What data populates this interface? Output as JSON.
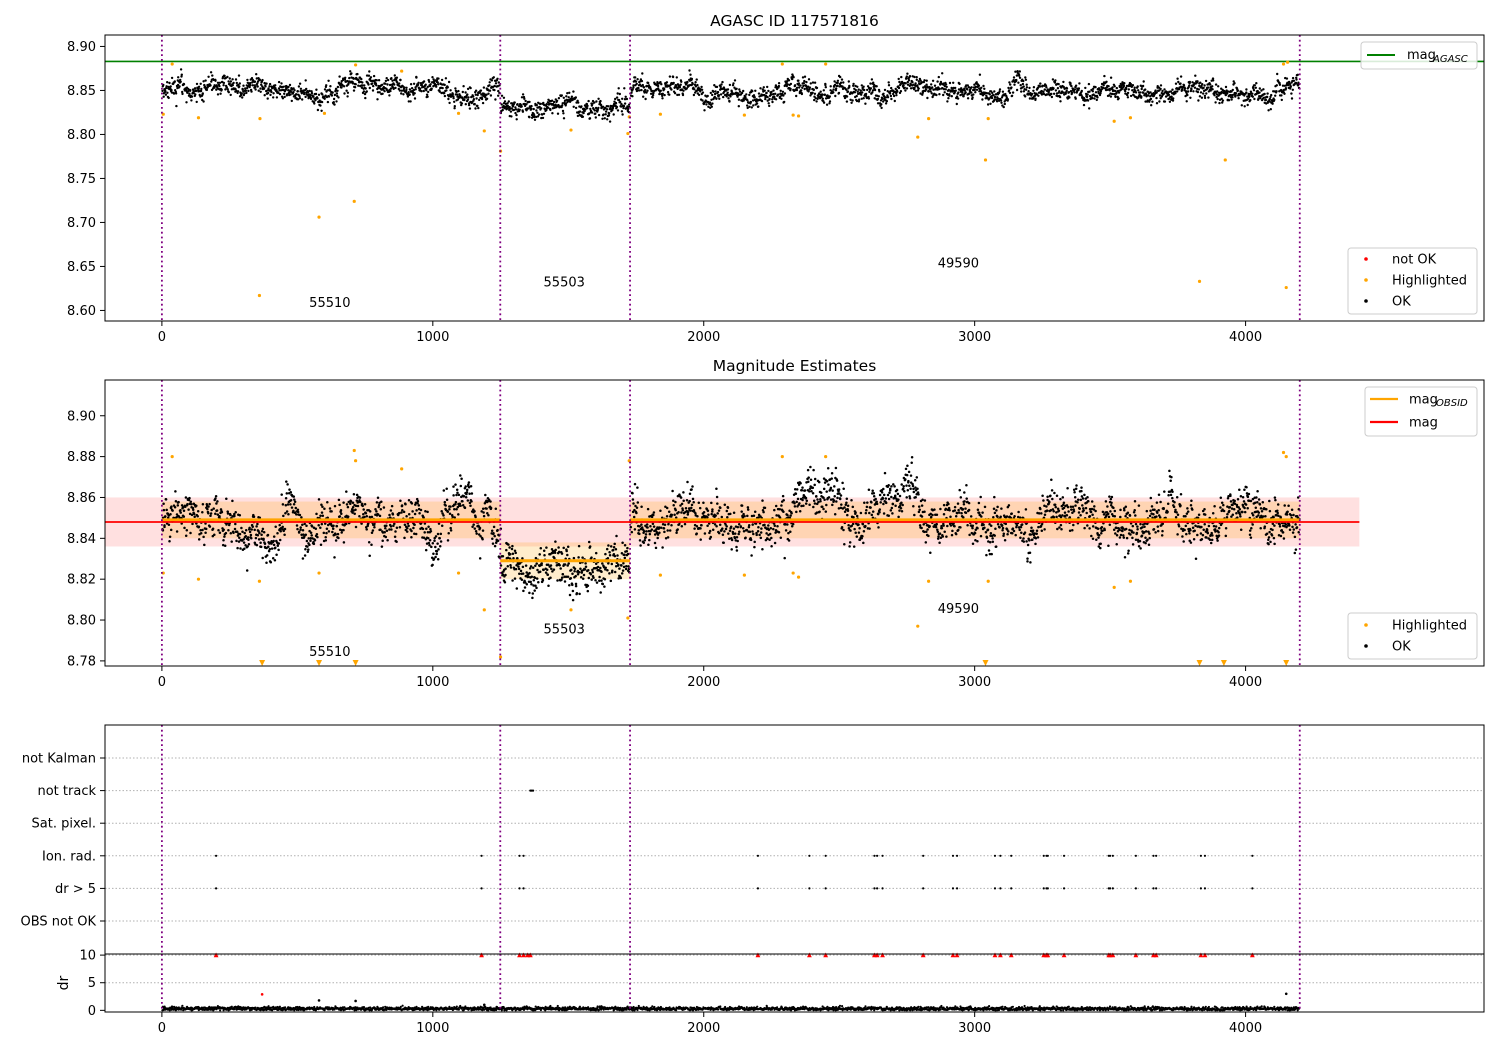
{
  "chart_data": [
    {
      "type": "scatter",
      "title": "AGASC ID 117571816",
      "xlim": [
        -210,
        4880
      ],
      "ylim": [
        8.588,
        8.913
      ],
      "x_ticks": [
        0,
        1000,
        2000,
        3000,
        4000
      ],
      "y_ticks": [
        8.6,
        8.65,
        8.7,
        8.75,
        8.8,
        8.85,
        8.9
      ],
      "y_tick_labels": [
        "8.60",
        "8.65",
        "8.70",
        "8.75",
        "8.80",
        "8.85",
        "8.90"
      ],
      "obsid_boundaries": [
        0,
        1249,
        1728,
        4200
      ],
      "obsid_segments": [
        {
          "obsid": "55510",
          "x_start": 0,
          "x_end": 1249,
          "level": 8.85,
          "label_x": 620,
          "label_y": 8.604
        },
        {
          "obsid": "55503",
          "x_start": 1249,
          "x_end": 1728,
          "level": 8.829,
          "label_x": 1485,
          "label_y": 8.627
        },
        {
          "obsid": "49590",
          "x_start": 1728,
          "x_end": 4200,
          "level": 8.85,
          "label_x": 2940,
          "label_y": 8.649
        }
      ],
      "reference_line": {
        "name": "mag_AGASC",
        "value": 8.883,
        "color": "#008000"
      },
      "highlighted_points": {
        "x": [
          5,
          38,
          135,
          360,
          362,
          580,
          600,
          710,
          715,
          885,
          1095,
          1190,
          1250,
          1510,
          1720,
          1725,
          1840,
          2150,
          2290,
          2330,
          2350,
          2450,
          2790,
          2830,
          3040,
          3050,
          3515,
          3575,
          3830,
          3925,
          4140,
          4150,
          4155
        ],
        "y": [
          8.823,
          8.88,
          8.819,
          8.617,
          8.818,
          8.706,
          8.824,
          8.724,
          8.879,
          8.872,
          8.824,
          8.804,
          8.781,
          8.805,
          8.801,
          8.82,
          8.823,
          8.822,
          8.88,
          8.822,
          8.821,
          8.88,
          8.797,
          8.818,
          8.771,
          8.818,
          8.815,
          8.819,
          8.633,
          8.771,
          8.88,
          8.626,
          8.882
        ]
      },
      "legend": {
        "upper": [
          {
            "label": "mag",
            "sub": "AGASC",
            "color": "#008000",
            "kind": "line"
          }
        ],
        "lower": [
          {
            "label": "not OK",
            "color": "#ff0000",
            "kind": "dot"
          },
          {
            "label": "Highlighted",
            "color": "#ffa500",
            "kind": "dot"
          },
          {
            "label": "OK",
            "color": "#000000",
            "kind": "dot"
          }
        ],
        "upper_position": "upper-right",
        "lower_position": "lower-right"
      }
    },
    {
      "type": "scatter",
      "title": "Magnitude Estimates",
      "xlim": [
        -210,
        4880
      ],
      "ylim": [
        8.7775,
        8.9175
      ],
      "x_ticks": [
        0,
        1000,
        2000,
        3000,
        4000
      ],
      "y_ticks": [
        8.78,
        8.8,
        8.82,
        8.84,
        8.86,
        8.88,
        8.9
      ],
      "y_tick_labels": [
        "8.78",
        "8.80",
        "8.82",
        "8.84",
        "8.86",
        "8.88",
        "8.90"
      ],
      "obsid_boundaries": [
        0,
        1249,
        1728,
        4200
      ],
      "obsid_segments": [
        {
          "obsid": "55510",
          "x_start": 0,
          "x_end": 1249,
          "level": 8.849,
          "band": [
            8.84,
            8.858
          ],
          "label_x": 620,
          "label_y": 8.7825
        },
        {
          "obsid": "55503",
          "x_start": 1249,
          "x_end": 1728,
          "level": 8.829,
          "band": [
            8.82,
            8.838
          ],
          "label_x": 1485,
          "label_y": 8.7935
        },
        {
          "obsid": "49590",
          "x_start": 1728,
          "x_end": 4200,
          "level": 8.849,
          "band": [
            8.84,
            8.858
          ],
          "label_x": 2940,
          "label_y": 8.8035
        }
      ],
      "overall_mag": {
        "name": "mag",
        "value": 8.848,
        "band": [
          8.836,
          8.86
        ],
        "x_start": -210,
        "x_end": 4420,
        "color": "#ff0000"
      },
      "highlighted_points": {
        "x": [
          5,
          38,
          135,
          360,
          580,
          710,
          715,
          885,
          1095,
          1190,
          1510,
          1720,
          1725,
          1840,
          2150,
          2290,
          2330,
          2350,
          2450,
          2790,
          2830,
          3050,
          3515,
          3575,
          4140,
          4150
        ],
        "y": [
          8.823,
          8.88,
          8.82,
          8.819,
          8.823,
          8.883,
          8.878,
          8.874,
          8.823,
          8.805,
          8.805,
          8.801,
          8.878,
          8.822,
          8.822,
          8.88,
          8.823,
          8.821,
          8.88,
          8.797,
          8.819,
          8.819,
          8.816,
          8.819,
          8.882,
          8.88
        ]
      },
      "below_range_markers_x": [
        370,
        580,
        715,
        3040,
        3830,
        3920,
        4150
      ],
      "lower_edge_point_x": [
        1250
      ],
      "legend": {
        "upper": [
          {
            "label": "mag",
            "sub": "OBSID",
            "color": "#ffa500",
            "kind": "line"
          },
          {
            "label": "mag",
            "sub": "",
            "color": "#ff0000",
            "kind": "line"
          }
        ],
        "lower": [
          {
            "label": "Highlighted",
            "color": "#ffa500",
            "kind": "dot"
          },
          {
            "label": "OK",
            "color": "#000000",
            "kind": "dot"
          }
        ],
        "upper_position": "upper-right",
        "lower_position": "lower-right"
      }
    },
    {
      "type": "scatter",
      "title": "",
      "xlim": [
        -210,
        4880
      ],
      "categories": [
        "not Kalman",
        "not track",
        "Sat. pixel.",
        "Ion. rad.",
        "dr > 5",
        "OBS not OK"
      ],
      "flags": {
        "not Kalman": [],
        "not track": [
          1360,
          1365,
          1370
        ],
        "Sat. pixel.": [],
        "Ion. rad.": [
          200,
          1180,
          1320,
          1335,
          2200,
          2390,
          2450,
          2630,
          2640,
          2660,
          2810,
          2920,
          2935,
          3075,
          3095,
          3135,
          3255,
          3265,
          3270,
          3330,
          3495,
          3500,
          3510,
          3595,
          3660,
          3670,
          3835,
          3850,
          4025
        ],
        "dr > 5": [
          200,
          1180,
          1320,
          1335,
          2200,
          2390,
          2450,
          2630,
          2640,
          2660,
          2810,
          2920,
          2935,
          3075,
          3095,
          3135,
          3255,
          3265,
          3270,
          3330,
          3495,
          3500,
          3510,
          3595,
          3660,
          3670,
          3835,
          3850,
          4025
        ],
        "OBS not OK": []
      }
    },
    {
      "type": "scatter",
      "title": "",
      "xlim": [
        -210,
        4880
      ],
      "ylim": [
        -0.3,
        10.2
      ],
      "x_ticks": [
        0,
        1000,
        2000,
        3000,
        4000
      ],
      "x_tick_labels": [
        "0",
        "1000",
        "2000",
        "3000",
        "4000"
      ],
      "y_ticks": [
        0,
        5,
        10
      ],
      "y_tick_labels": [
        "0",
        "5",
        "10"
      ],
      "ylabel": "dr",
      "clipped_points_x": [
        200,
        1180,
        1320,
        1335,
        1350,
        1360,
        2200,
        2390,
        2450,
        2630,
        2640,
        2660,
        2810,
        2920,
        2935,
        3075,
        3095,
        3135,
        3255,
        3265,
        3270,
        3330,
        3495,
        3500,
        3510,
        3595,
        3660,
        3670,
        3835,
        3850,
        4025
      ],
      "scattered_points": {
        "x": [
          370,
          580,
          715,
          1190,
          4150
        ],
        "y": [
          2.9,
          1.8,
          1.7,
          1.0,
          3.0
        ]
      }
    }
  ]
}
